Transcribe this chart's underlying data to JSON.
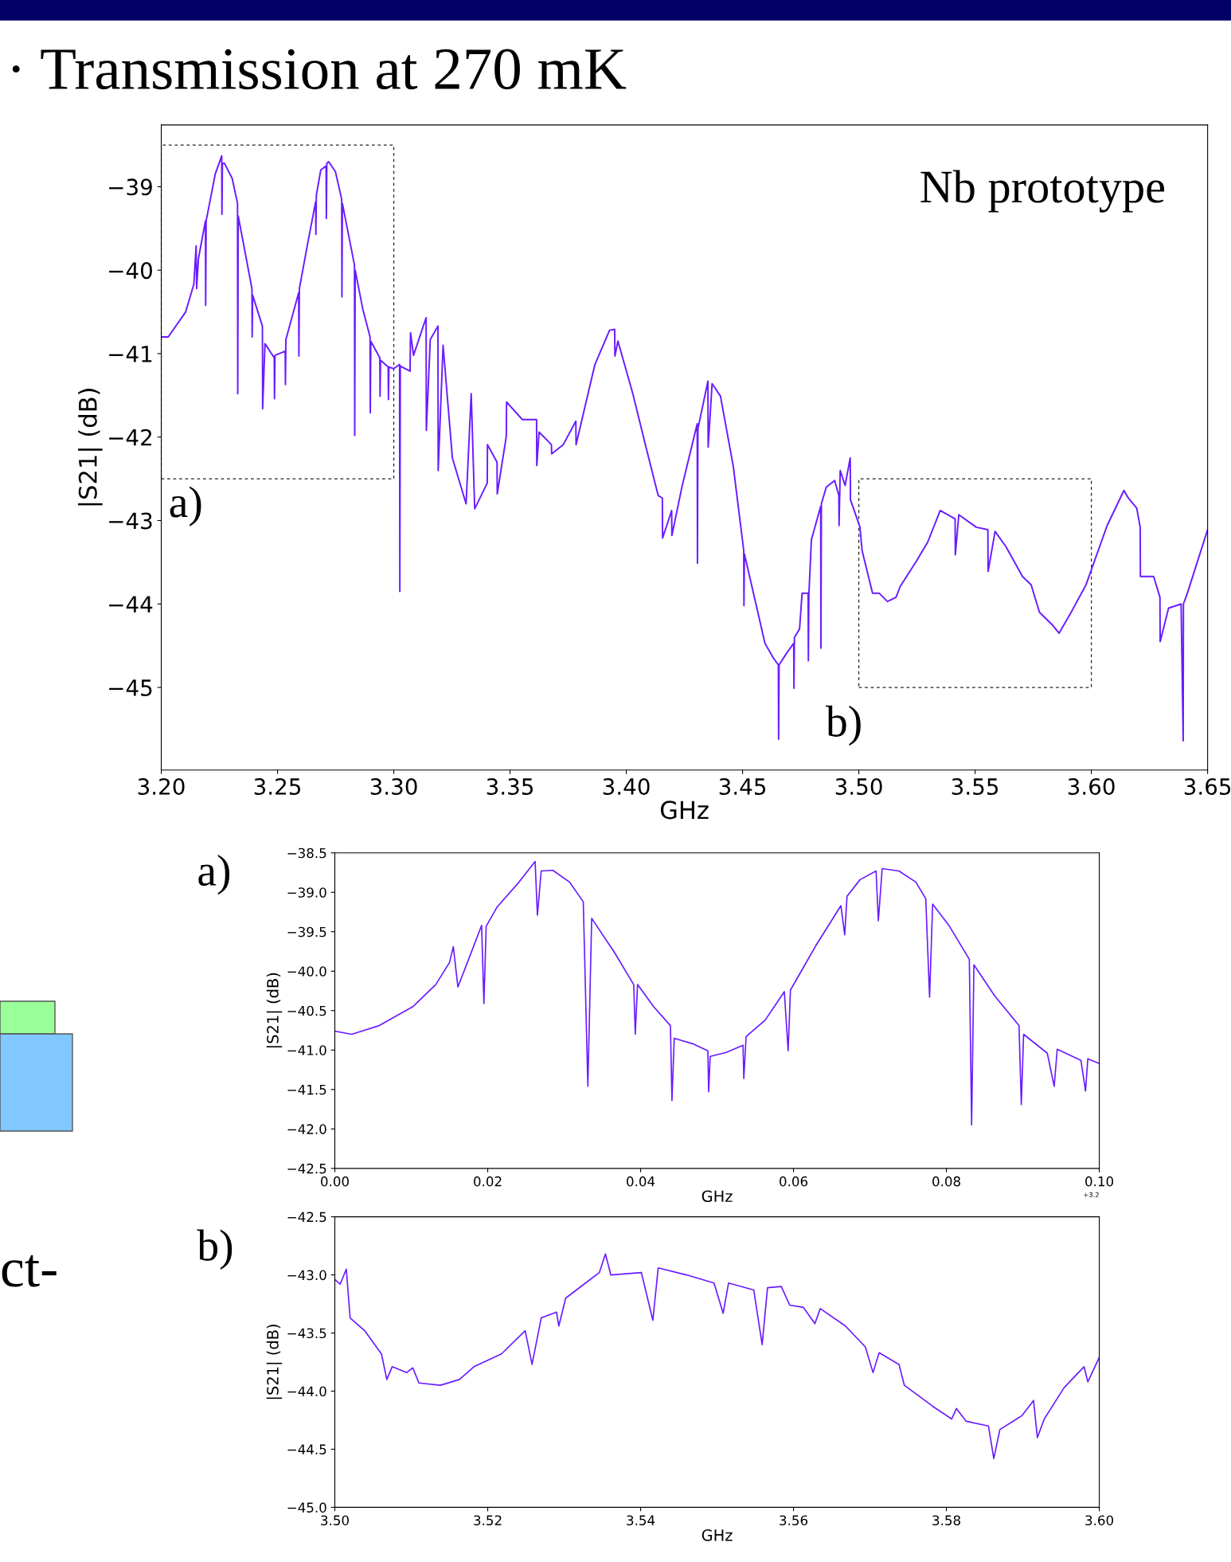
{
  "chart_data": [
    {
      "type": "line",
      "title": "· Transmission at 270 mK",
      "xlabel": "GHz",
      "ylabel": "|S21| (dB)",
      "x": [
        3.2,
        3.203,
        3.2105,
        3.214,
        3.215,
        3.2152,
        3.216,
        3.219,
        3.2191,
        3.2193,
        3.2232,
        3.226,
        3.2261,
        3.2263,
        3.2272,
        3.2305,
        3.2328,
        3.2329,
        3.2331,
        3.239,
        3.2391,
        3.2393,
        3.2435,
        3.2436,
        3.2446,
        3.2486,
        3.2487,
        3.2489,
        3.2533,
        3.2534,
        3.2536,
        3.2591,
        3.2592,
        3.2594,
        3.2631,
        3.2664,
        3.2665,
        3.2667,
        3.2686,
        3.2709,
        3.271,
        3.2712,
        3.272,
        3.2749,
        3.2776,
        3.2777,
        3.2779,
        3.2831,
        3.2832,
        3.2834,
        3.2867,
        3.2898,
        3.2899,
        3.2901,
        3.294,
        3.2941,
        3.2943,
        3.2976,
        3.2977,
        3.2979,
        3.3,
        3.3025,
        3.3026,
        3.3028,
        3.307,
        3.3072,
        3.3085,
        3.3139,
        3.314,
        3.3157,
        3.319,
        3.3191,
        3.3212,
        3.3252,
        3.3311,
        3.3333,
        3.3348,
        3.3402,
        3.3403,
        3.3444,
        3.3445,
        3.3484,
        3.3485,
        3.3553,
        3.3614,
        3.3615,
        3.3625,
        3.3678,
        3.3679,
        3.3729,
        3.3783,
        3.3784,
        3.3865,
        3.3928,
        3.395,
        3.3951,
        3.3964,
        3.4028,
        3.4082,
        3.4137,
        3.4155,
        3.4156,
        3.4195,
        3.4196,
        3.4239,
        3.4305,
        3.4306,
        3.4308,
        3.4351,
        3.4352,
        3.4369,
        3.4405,
        3.446,
        3.4505,
        3.4506,
        3.4508,
        3.4574,
        3.4596,
        3.4633,
        3.4654,
        3.4655,
        3.4657,
        3.4687,
        3.472,
        3.4721,
        3.4723,
        3.4745,
        3.4756,
        3.4782,
        3.4783,
        3.4785,
        3.4796,
        3.4836,
        3.4837,
        3.4839,
        3.486,
        3.4896,
        3.4914,
        3.4915,
        3.492,
        3.4941,
        3.4963,
        3.4964,
        3.5005,
        3.5014,
        3.5059,
        3.5087,
        3.5123,
        3.516,
        3.5178,
        3.5247,
        3.5296,
        3.535,
        3.5414,
        3.5415,
        3.543,
        3.5505,
        3.5555,
        3.5556,
        3.5586,
        3.5632,
        3.5704,
        3.5741,
        3.5777,
        3.5832,
        3.5861,
        3.5913,
        3.5977,
        3.6068,
        3.614,
        3.6159,
        3.6195,
        3.621,
        3.6211,
        3.6268,
        3.6295,
        3.6296,
        3.6332,
        3.6386,
        3.6395,
        3.6396,
        3.6413,
        3.65
      ],
      "series": [
        {
          "color": "#6a1bff",
          "values": [
            -40.8,
            -40.8,
            -40.5,
            -40.17,
            -39.71,
            -40.22,
            -39.86,
            -39.41,
            -40.42,
            -39.41,
            -38.85,
            -38.63,
            -39.33,
            -38.72,
            -38.72,
            -38.9,
            -39.2,
            -41.48,
            -39.35,
            -40.22,
            -40.8,
            -40.3,
            -40.67,
            -41.66,
            -40.88,
            -41.05,
            -41.54,
            -41.02,
            -40.97,
            -41.37,
            -40.83,
            -40.27,
            -41.03,
            -40.22,
            -39.66,
            -39.18,
            -39.57,
            -39.1,
            -38.8,
            -38.75,
            -39.38,
            -38.72,
            -38.7,
            -38.82,
            -39.15,
            -40.32,
            -39.2,
            -39.94,
            -41.98,
            -40.0,
            -40.47,
            -40.8,
            -41.71,
            -40.85,
            -41.05,
            -41.51,
            -41.08,
            -41.16,
            -41.55,
            -41.16,
            -41.18,
            -41.13,
            -43.85,
            -41.15,
            -41.21,
            -40.75,
            -41.02,
            -40.57,
            -41.92,
            -40.83,
            -40.67,
            -42.4,
            -40.9,
            -42.25,
            -42.8,
            -41.48,
            -42.86,
            -42.55,
            -42.09,
            -42.3,
            -42.68,
            -41.99,
            -41.58,
            -41.79,
            -41.79,
            -42.34,
            -41.94,
            -42.09,
            -42.2,
            -42.09,
            -41.81,
            -42.09,
            -41.13,
            -40.72,
            -40.71,
            -41.03,
            -40.85,
            -41.48,
            -42.09,
            -42.7,
            -42.73,
            -43.21,
            -42.88,
            -43.18,
            -42.6,
            -41.84,
            -43.51,
            -41.9,
            -41.33,
            -42.12,
            -41.36,
            -41.51,
            -42.35,
            -43.36,
            -44.02,
            -43.4,
            -44.2,
            -44.47,
            -44.65,
            -44.73,
            -45.62,
            -44.73,
            -44.6,
            -44.47,
            -45.01,
            -44.4,
            -44.3,
            -43.87,
            -43.87,
            -44.68,
            -43.9,
            -43.23,
            -42.83,
            -44.53,
            -42.8,
            -42.6,
            -42.52,
            -42.7,
            -43.06,
            -42.4,
            -42.58,
            -42.25,
            -42.75,
            -43.08,
            -43.36,
            -43.87,
            -43.87,
            -43.97,
            -43.92,
            -43.79,
            -43.49,
            -43.26,
            -42.88,
            -42.98,
            -43.41,
            -42.93,
            -43.08,
            -43.11,
            -43.61,
            -43.13,
            -43.31,
            -43.67,
            -43.77,
            -44.1,
            -44.25,
            -44.35,
            -44.1,
            -43.77,
            -43.06,
            -42.64,
            -42.73,
            -42.85,
            -43.08,
            -43.67,
            -43.67,
            -43.92,
            -44.45,
            -44.05,
            -44.0,
            -45.64,
            -44.0,
            -43.87,
            -43.11
          ]
        }
      ],
      "xlim": [
        3.2,
        3.65
      ],
      "xticks": [
        {
          "value": 3.2,
          "label": "3.20"
        },
        {
          "value": 3.25,
          "label": "3.25"
        },
        {
          "value": 3.3,
          "label": "3.30"
        },
        {
          "value": 3.35,
          "label": "3.35"
        },
        {
          "value": 3.4,
          "label": "3.40"
        },
        {
          "value": 3.45,
          "label": "3.45"
        },
        {
          "value": 3.5,
          "label": "3.50"
        },
        {
          "value": 3.55,
          "label": "3.55"
        },
        {
          "value": 3.6,
          "label": "3.60"
        },
        {
          "value": 3.65,
          "label": "3.65"
        }
      ],
      "ylim": [
        -45.99,
        -38.26
      ],
      "yticks": [
        {
          "value": -45,
          "label": "−45"
        },
        {
          "value": -44,
          "label": "−44"
        },
        {
          "value": -43,
          "label": "−43"
        },
        {
          "value": -42,
          "label": "−42"
        },
        {
          "value": -41,
          "label": "−41"
        },
        {
          "value": -40,
          "label": "−40"
        },
        {
          "value": -39,
          "label": "−39"
        }
      ],
      "grid": false,
      "legend": false,
      "marker": "none",
      "line_style": "solid",
      "annotations": [
        "Nb prototype",
        "a)",
        "b)"
      ]
    },
    {
      "type": "line",
      "xlabel": "GHz",
      "ylabel": "|S21| (dB)",
      "x": [
        0,
        0.0022,
        0.0058,
        0.0102,
        0.0132,
        0.015,
        0.0155,
        0.0161,
        0.0175,
        0.0192,
        0.0195,
        0.0198,
        0.0212,
        0.0241,
        0.0262,
        0.0265,
        0.027,
        0.0285,
        0.0307,
        0.0325,
        0.0331,
        0.0336,
        0.0365,
        0.0391,
        0.0393,
        0.0396,
        0.0417,
        0.0439,
        0.0441,
        0.0444,
        0.0468,
        0.0488,
        0.0489,
        0.0491,
        0.0512,
        0.0534,
        0.0535,
        0.0538,
        0.0563,
        0.0588,
        0.0593,
        0.0596,
        0.0629,
        0.0662,
        0.0667,
        0.067,
        0.0687,
        0.0708,
        0.0711,
        0.0716,
        0.0738,
        0.076,
        0.0773,
        0.0778,
        0.0782,
        0.0804,
        0.083,
        0.0833,
        0.0836,
        0.0863,
        0.0895,
        0.0898,
        0.0901,
        0.0932,
        0.0941,
        0.0945,
        0.0976,
        0.0982,
        0.0985,
        0.1
      ],
      "series": [
        {
          "color": "#6a1bff",
          "values": [
            -40.76,
            -40.8,
            -40.69,
            -40.45,
            -40.17,
            -39.89,
            -39.69,
            -40.2,
            -39.85,
            -39.42,
            -40.41,
            -39.43,
            -39.19,
            -38.87,
            -38.61,
            -39.29,
            -38.73,
            -38.72,
            -38.87,
            -39.12,
            -41.46,
            -39.33,
            -39.75,
            -40.17,
            -40.8,
            -40.17,
            -40.45,
            -40.69,
            -41.64,
            -40.85,
            -40.92,
            -41.01,
            -41.53,
            -41.08,
            -41.03,
            -40.94,
            -41.36,
            -40.83,
            -40.62,
            -40.26,
            -41.01,
            -40.24,
            -39.68,
            -39.17,
            -39.54,
            -39.05,
            -38.84,
            -38.73,
            -39.36,
            -38.7,
            -38.73,
            -38.87,
            -39.08,
            -40.33,
            -39.15,
            -39.43,
            -39.85,
            -41.95,
            -39.92,
            -40.31,
            -40.69,
            -41.69,
            -40.8,
            -41.04,
            -41.46,
            -40.99,
            -41.13,
            -41.52,
            -41.11,
            -41.17
          ]
        }
      ],
      "xlim": [
        0,
        0.1
      ],
      "xticks": [
        {
          "value": 0,
          "label": "0.00"
        },
        {
          "value": 0.02,
          "label": "0.02"
        },
        {
          "value": 0.04,
          "label": "0.04"
        },
        {
          "value": 0.06,
          "label": "0.06"
        },
        {
          "value": 0.08,
          "label": "0.08"
        },
        {
          "value": 0.1,
          "label": "0.10"
        }
      ],
      "ylim": [
        -42.5,
        -38.5
      ],
      "yticks": [
        {
          "value": -42.5,
          "label": "−42.5"
        },
        {
          "value": -42.0,
          "label": "−42.0"
        },
        {
          "value": -41.5,
          "label": "−41.5"
        },
        {
          "value": -41.0,
          "label": "−41.0"
        },
        {
          "value": -40.5,
          "label": "−40.5"
        },
        {
          "value": -40.0,
          "label": "−40.0"
        },
        {
          "value": -39.5,
          "label": "−39.5"
        },
        {
          "value": -39.0,
          "label": "−39.0"
        },
        {
          "value": -38.5,
          "label": "−38.5"
        }
      ],
      "grid": false,
      "legend": false,
      "marker": "none",
      "line_style": "solid",
      "annotations": [
        "a)",
        "+3.2"
      ]
    },
    {
      "type": "line",
      "xlabel": "GHz",
      "ylabel": "|S21| (dB)",
      "x": [
        3.5,
        3.5007,
        3.5015,
        3.502,
        3.5039,
        3.5061,
        3.5068,
        3.5075,
        3.5094,
        3.5102,
        3.511,
        3.5138,
        3.5163,
        3.5182,
        3.5218,
        3.5249,
        3.5258,
        3.527,
        3.529,
        3.5293,
        3.5302,
        3.5328,
        3.5346,
        3.5354,
        3.5361,
        3.5401,
        3.5416,
        3.5423,
        3.546,
        3.5496,
        3.5508,
        3.5515,
        3.5548,
        3.5559,
        3.5566,
        3.5584,
        3.5595,
        3.5613,
        3.5628,
        3.5635,
        3.5668,
        3.5694,
        3.5704,
        3.5712,
        3.5738,
        3.5745,
        3.5782,
        3.5807,
        3.5813,
        3.5826,
        3.5855,
        3.5862,
        3.587,
        3.5899,
        3.5914,
        3.5919,
        3.5928,
        3.5954,
        3.598,
        3.5985,
        3.6
      ],
      "series": [
        {
          "color": "#6a1bff",
          "values": [
            -43.04,
            -43.08,
            -42.95,
            -43.37,
            -43.48,
            -43.68,
            -43.9,
            -43.79,
            -43.84,
            -43.8,
            -43.93,
            -43.95,
            -43.9,
            -43.79,
            -43.68,
            -43.48,
            -43.77,
            -43.37,
            -43.32,
            -43.44,
            -43.2,
            -43.07,
            -42.98,
            -42.82,
            -43.0,
            -42.98,
            -43.39,
            -42.94,
            -43.0,
            -43.07,
            -43.33,
            -43.07,
            -43.13,
            -43.6,
            -43.11,
            -43.1,
            -43.26,
            -43.28,
            -43.42,
            -43.29,
            -43.44,
            -43.62,
            -43.84,
            -43.67,
            -43.77,
            -43.95,
            -44.13,
            -44.24,
            -44.15,
            -44.26,
            -44.3,
            -44.58,
            -44.33,
            -44.21,
            -44.08,
            -44.4,
            -44.24,
            -43.97,
            -43.79,
            -43.92,
            -43.71
          ]
        }
      ],
      "xlim": [
        3.5,
        3.6
      ],
      "xticks": [
        {
          "value": 3.5,
          "label": "3.50"
        },
        {
          "value": 3.52,
          "label": "3.52"
        },
        {
          "value": 3.54,
          "label": "3.54"
        },
        {
          "value": 3.56,
          "label": "3.56"
        },
        {
          "value": 3.58,
          "label": "3.58"
        },
        {
          "value": 3.6,
          "label": "3.60"
        }
      ],
      "ylim": [
        -45.0,
        -42.5
      ],
      "yticks": [
        {
          "value": -45.0,
          "label": "−45.0"
        },
        {
          "value": -44.5,
          "label": "−44.5"
        },
        {
          "value": -44.0,
          "label": "−44.0"
        },
        {
          "value": -43.5,
          "label": "−43.5"
        },
        {
          "value": -43.0,
          "label": "−43.0"
        },
        {
          "value": -42.5,
          "label": "−42.5"
        }
      ],
      "grid": false,
      "legend": false,
      "marker": "none",
      "line_style": "solid",
      "annotations": [
        "b)",
        "ct-"
      ]
    }
  ]
}
